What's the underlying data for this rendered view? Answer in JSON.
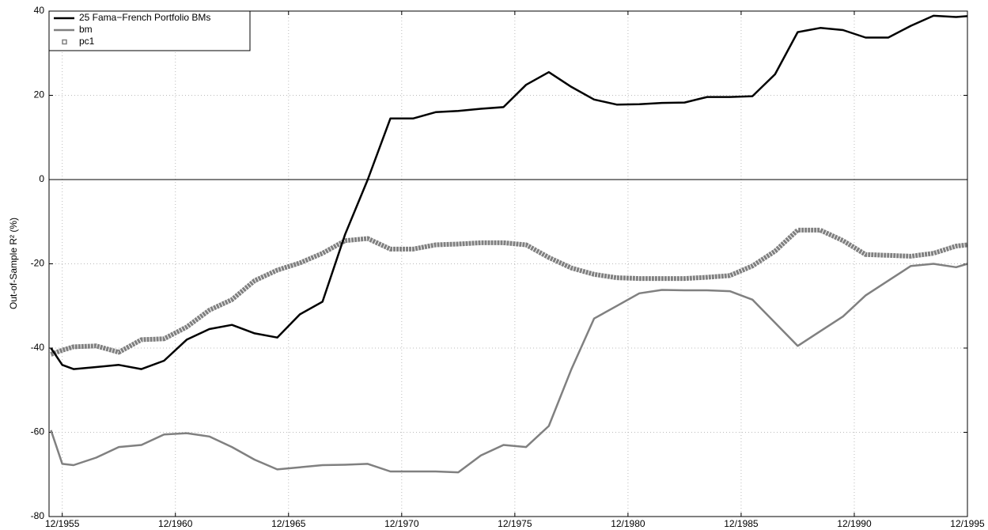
{
  "chart_data": {
    "type": "line",
    "ylabel": "Out-of-Sample R² (%)",
    "x": [
      "1955-06",
      "1955-12",
      "1956-06",
      "1957-06",
      "1958-06",
      "1959-06",
      "1960-06",
      "1961-06",
      "1962-06",
      "1963-06",
      "1964-06",
      "1965-06",
      "1966-06",
      "1967-06",
      "1968-06",
      "1969-06",
      "1970-06",
      "1971-06",
      "1972-06",
      "1973-06",
      "1974-06",
      "1975-06",
      "1976-06",
      "1977-06",
      "1978-06",
      "1979-06",
      "1980-06",
      "1981-06",
      "1982-06",
      "1983-06",
      "1984-06",
      "1985-06",
      "1986-06",
      "1987-06",
      "1988-06",
      "1989-06",
      "1990-06",
      "1991-06",
      "1992-06",
      "1993-06",
      "1994-06",
      "1995-06",
      "1995-12"
    ],
    "series": [
      {
        "name": "25 Fama−French Portfolio BMs",
        "color": "#000000",
        "line_width": 2.5,
        "values": [
          -40,
          -44,
          -45,
          -44.5,
          -44,
          -45,
          -43,
          -38,
          -35.5,
          -34.5,
          -36.5,
          -37.5,
          -32,
          -29,
          -13,
          0,
          14.5,
          14.5,
          16,
          16.3,
          16.8,
          17.2,
          22.5,
          25.5,
          22,
          19,
          17.8,
          17.9,
          18.2,
          18.3,
          19.6,
          19.6,
          19.8,
          25,
          35,
          36,
          35.5,
          33.7,
          33.7,
          36.5,
          38.9,
          38.6,
          38.8
        ]
      },
      {
        "name": "bm",
        "color": "#808080",
        "line_width": 2.5,
        "values": [
          -59.5,
          -67.5,
          -67.8,
          -66,
          -63.5,
          -63,
          -60.5,
          -60.2,
          -61,
          -63.5,
          -66.5,
          -68.8,
          -68.3,
          -67.8,
          -67.7,
          -67.5,
          -69.3,
          -69.3,
          -69.3,
          -69.5,
          -65.5,
          -63,
          -63.5,
          -58.5,
          -45,
          -33,
          -30,
          -27,
          -26.2,
          -26.3,
          -26.3,
          -26.5,
          -28.5,
          -34,
          -39.5,
          -36,
          -32.5,
          -27.5,
          -24,
          -20.5,
          -20,
          -20.8,
          -20
        ]
      },
      {
        "name": "pc1",
        "color": "#808080",
        "line_width": 6,
        "marker": "square",
        "values": [
          -41.5,
          -40.5,
          -39.7,
          -39.5,
          -41,
          -38,
          -37.8,
          -35,
          -31,
          -28.5,
          -24,
          -21.5,
          -19.8,
          -17.5,
          -14.5,
          -14,
          -16.5,
          -16.5,
          -15.5,
          -15.3,
          -15,
          -15,
          -15.5,
          -18.5,
          -21,
          -22.5,
          -23.3,
          -23.5,
          -23.5,
          -23.5,
          -23.2,
          -22.8,
          -20.5,
          -17,
          -12,
          -12,
          -14.5,
          -17.8,
          -18,
          -18.2,
          -17.5,
          -15.8,
          -15.5
        ]
      }
    ],
    "xlim": [
      "1955-05",
      "1995-12"
    ],
    "xticks": [
      {
        "value": "1955-12",
        "label": "12/1955"
      },
      {
        "value": "1960-12",
        "label": "12/1960"
      },
      {
        "value": "1965-12",
        "label": "12/1965"
      },
      {
        "value": "1970-12",
        "label": "12/1970"
      },
      {
        "value": "1975-12",
        "label": "12/1975"
      },
      {
        "value": "1980-12",
        "label": "12/1980"
      },
      {
        "value": "1985-12",
        "label": "12/1985"
      },
      {
        "value": "1990-12",
        "label": "12/1990"
      },
      {
        "value": "1995-12",
        "label": "12/1995"
      }
    ],
    "ylim": [
      -80,
      40
    ],
    "yticks": [
      -80,
      -60,
      -40,
      -20,
      0,
      20,
      40
    ],
    "reference_line": 0,
    "grid": true,
    "legend": "upper left"
  }
}
